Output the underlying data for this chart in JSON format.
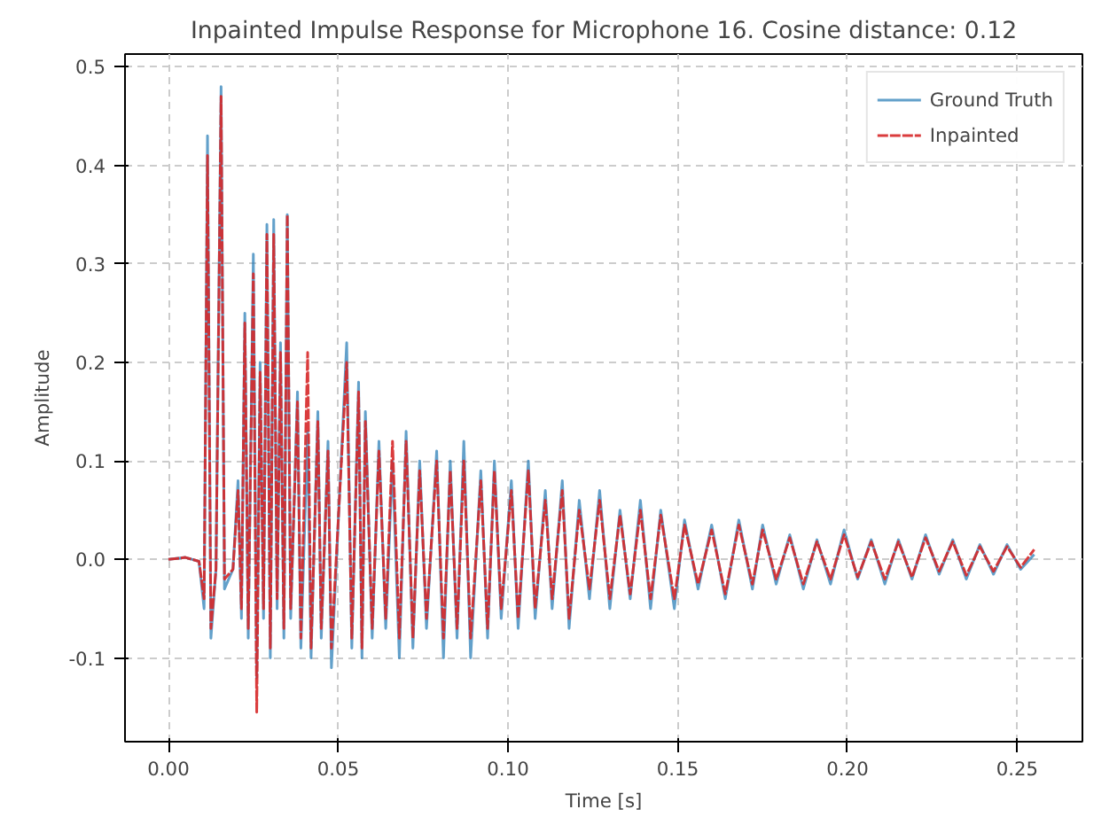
{
  "chart_data": {
    "type": "line",
    "title": "Inpainted Impulse Response for Microphone 16. Cosine distance: 0.12",
    "xlabel": "Time [s]",
    "ylabel": "Amplitude",
    "x": [
      0,
      0.005,
      0.009,
      0.0105,
      0.0115,
      0.0125,
      0.014,
      0.0155,
      0.0165,
      0.019,
      0.0205,
      0.0215,
      0.0225,
      0.0235,
      0.025,
      0.026,
      0.027,
      0.028,
      0.029,
      0.03,
      0.031,
      0.032,
      0.033,
      0.034,
      0.035,
      0.036,
      0.038,
      0.039,
      0.041,
      0.042,
      0.044,
      0.045,
      0.047,
      0.048,
      0.0525,
      0.054,
      0.056,
      0.057,
      0.058,
      0.06,
      0.062,
      0.064,
      0.066,
      0.068,
      0.07,
      0.072,
      0.074,
      0.076,
      0.079,
      0.081,
      0.083,
      0.085,
      0.087,
      0.089,
      0.092,
      0.094,
      0.096,
      0.098,
      0.101,
      0.103,
      0.106,
      0.108,
      0.111,
      0.113,
      0.116,
      0.118,
      0.121,
      0.124,
      0.127,
      0.13,
      0.133,
      0.136,
      0.139,
      0.142,
      0.145,
      0.149,
      0.152,
      0.156,
      0.16,
      0.164,
      0.168,
      0.172,
      0.175,
      0.179,
      0.183,
      0.187,
      0.191,
      0.195,
      0.199,
      0.203,
      0.207,
      0.211,
      0.215,
      0.219,
      0.223,
      0.227,
      0.231,
      0.235,
      0.239,
      0.243,
      0.247,
      0.251,
      0.255
    ],
    "series": [
      {
        "name": "Ground Truth",
        "color": "#1f77b4",
        "line_style": "solid",
        "values": [
          0,
          0.002,
          -0.002,
          -0.05,
          0.43,
          -0.08,
          -0.01,
          0.48,
          -0.03,
          -0.01,
          0.08,
          -0.06,
          0.25,
          -0.08,
          0.31,
          -0.12,
          0.2,
          -0.06,
          0.34,
          -0.1,
          0.345,
          -0.05,
          0.22,
          -0.08,
          0.35,
          -0.06,
          0.17,
          -0.09,
          0.13,
          -0.1,
          0.15,
          -0.08,
          0.12,
          -0.11,
          0.22,
          -0.09,
          0.18,
          -0.1,
          0.15,
          -0.08,
          0.12,
          -0.07,
          0.1,
          -0.1,
          0.13,
          -0.09,
          0.1,
          -0.07,
          0.11,
          -0.1,
          0.1,
          -0.08,
          0.12,
          -0.1,
          0.09,
          -0.08,
          0.1,
          -0.06,
          0.08,
          -0.07,
          0.1,
          -0.06,
          0.07,
          -0.05,
          0.08,
          -0.07,
          0.06,
          -0.04,
          0.07,
          -0.05,
          0.05,
          -0.04,
          0.06,
          -0.05,
          0.05,
          -0.05,
          0.04,
          -0.03,
          0.035,
          -0.04,
          0.04,
          -0.03,
          0.035,
          -0.025,
          0.025,
          -0.03,
          0.02,
          -0.025,
          0.03,
          -0.02,
          0.02,
          -0.025,
          0.02,
          -0.02,
          0.025,
          -0.015,
          0.02,
          -0.02,
          0.015,
          -0.015,
          0.015,
          -0.01,
          0.005
        ]
      },
      {
        "name": "Inpainted",
        "color": "#d62728",
        "line_style": "dashed",
        "values": [
          0,
          0.002,
          -0.002,
          -0.04,
          0.41,
          -0.07,
          -0.01,
          0.47,
          -0.02,
          -0.01,
          0.07,
          -0.05,
          0.24,
          -0.07,
          0.29,
          -0.155,
          0.19,
          -0.05,
          0.33,
          -0.09,
          0.33,
          -0.04,
          0.21,
          -0.07,
          0.35,
          -0.05,
          0.16,
          -0.08,
          0.21,
          -0.09,
          0.14,
          -0.07,
          0.11,
          -0.09,
          0.2,
          -0.08,
          0.17,
          -0.09,
          0.14,
          -0.07,
          0.11,
          -0.06,
          0.12,
          -0.08,
          0.12,
          -0.08,
          0.09,
          -0.06,
          0.1,
          -0.08,
          0.09,
          -0.07,
          0.1,
          -0.08,
          0.08,
          -0.07,
          0.09,
          -0.05,
          0.07,
          -0.06,
          0.09,
          -0.05,
          0.06,
          -0.04,
          0.07,
          -0.06,
          0.05,
          -0.03,
          0.06,
          -0.04,
          0.045,
          -0.035,
          0.05,
          -0.04,
          0.045,
          -0.04,
          0.035,
          -0.025,
          0.03,
          -0.035,
          0.035,
          -0.025,
          0.03,
          -0.02,
          0.022,
          -0.025,
          0.018,
          -0.02,
          0.025,
          -0.018,
          0.018,
          -0.02,
          0.018,
          -0.018,
          0.022,
          -0.012,
          0.018,
          -0.016,
          0.013,
          -0.012,
          0.013,
          -0.008,
          0.01
        ]
      }
    ],
    "xlim": [
      -0.0128,
      0.2692
    ],
    "ylim": [
      -0.185,
      0.513
    ],
    "xticks": [
      {
        "value": 0,
        "label": "0.00"
      },
      0.05,
      {
        "value": 0.1,
        "label": "0.10"
      },
      0.15,
      {
        "value": 0.2,
        "label": "0.20"
      },
      0.25
    ],
    "yticks": [
      -0.1,
      {
        "value": 0,
        "label": "0.0"
      },
      0.1,
      0.2,
      0.3,
      0.4,
      0.5
    ],
    "grid": true,
    "legend": "top right"
  }
}
